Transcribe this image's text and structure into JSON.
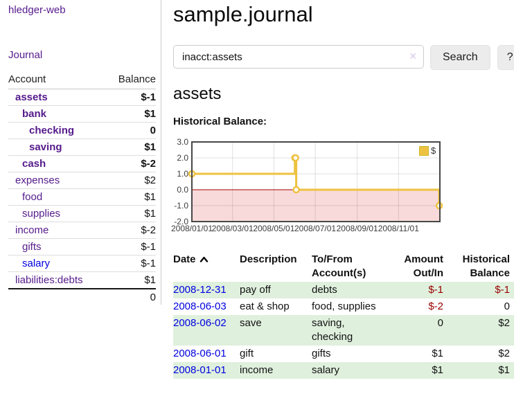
{
  "app": {
    "brand": "hledger-web",
    "journal_link": "Journal"
  },
  "sidebar": {
    "header": {
      "account": "Account",
      "balance": "Balance"
    },
    "accounts": [
      {
        "name": "assets",
        "depth": 1,
        "bold": true,
        "balance": "$-1",
        "balance_class": "neg",
        "link_class": ""
      },
      {
        "name": "bank",
        "depth": 2,
        "bold": true,
        "balance": "$1",
        "balance_class": "",
        "link_class": ""
      },
      {
        "name": "checking",
        "depth": 3,
        "bold": true,
        "balance": "0",
        "balance_class": "",
        "link_class": ""
      },
      {
        "name": "saving",
        "depth": 3,
        "bold": true,
        "balance": "$1",
        "balance_class": "",
        "link_class": ""
      },
      {
        "name": "cash",
        "depth": 2,
        "bold": true,
        "balance": "$-2",
        "balance_class": "neg",
        "link_class": ""
      },
      {
        "name": "expenses",
        "depth": 1,
        "bold": false,
        "balance": "$2",
        "balance_class": "",
        "link_class": ""
      },
      {
        "name": "food",
        "depth": 2,
        "bold": false,
        "balance": "$1",
        "balance_class": "",
        "link_class": ""
      },
      {
        "name": "supplies",
        "depth": 2,
        "bold": false,
        "balance": "$1",
        "balance_class": "",
        "link_class": ""
      },
      {
        "name": "income",
        "depth": 1,
        "bold": false,
        "balance": "$-2",
        "balance_class": "neg-muted",
        "link_class": ""
      },
      {
        "name": "gifts",
        "depth": 2,
        "bold": false,
        "balance": "$-1",
        "balance_class": "neg-muted",
        "link_class": ""
      },
      {
        "name": "salary",
        "depth": 2,
        "bold": false,
        "balance": "$-1",
        "balance_class": "neg-muted",
        "link_class": "blue"
      },
      {
        "name": "liabilities:debts",
        "depth": 1,
        "bold": false,
        "balance": "$1",
        "balance_class": "",
        "link_class": ""
      }
    ],
    "total": "0"
  },
  "main": {
    "title": "sample.journal",
    "search": {
      "value": "inacct:assets",
      "clear_icon": "✕",
      "search_button": "Search",
      "help_button": "?"
    },
    "account_heading": "assets",
    "chart_heading": "Historical Balance:"
  },
  "chart_data": {
    "type": "line",
    "step": true,
    "title": "Historical Balance",
    "legend_position": "top-right",
    "grid": true,
    "ylim": [
      -2,
      3
    ],
    "xlim_days": [
      0,
      366
    ],
    "yticks": [
      {
        "label": "3.0",
        "value": 3
      },
      {
        "label": "2.0",
        "value": 2
      },
      {
        "label": "1.0",
        "value": 1
      },
      {
        "label": "0.0",
        "value": 0
      },
      {
        "label": "-1.0",
        "value": -1
      },
      {
        "label": "-2.0",
        "value": -2
      }
    ],
    "xticks": [
      {
        "label": "2008/01/01",
        "day": 0
      },
      {
        "label": "2008/03/01",
        "day": 60
      },
      {
        "label": "2008/05/01",
        "day": 121
      },
      {
        "label": "2008/07/01",
        "day": 182
      },
      {
        "label": "2008/09/01",
        "day": 244
      },
      {
        "label": "2008/11/01",
        "day": 305
      }
    ],
    "series": [
      {
        "name": "$",
        "color": "#edc240",
        "points": [
          {
            "date": "2008-01-01",
            "day": 0,
            "value": 1
          },
          {
            "date": "2008-06-01",
            "day": 152,
            "value": 2
          },
          {
            "date": "2008-06-02",
            "day": 153,
            "value": 2
          },
          {
            "date": "2008-06-03",
            "day": 154,
            "value": 0
          },
          {
            "date": "2008-12-31",
            "day": 365,
            "value": -1
          }
        ]
      }
    ],
    "zero_line_color": "#a40000",
    "negative_region_color": "#f9dada",
    "grid_line_color": "rgba(0,0,0,0.12)",
    "border_color": "#474747"
  },
  "register": {
    "headers": {
      "date": "Date",
      "description": "Description",
      "account": "To/From Account(s)",
      "amount": "Amount Out/In",
      "balance": "Historical Balance"
    },
    "rows": [
      {
        "date": "2008-12-31",
        "description": "pay off",
        "accounts": "debts",
        "amount": "$-1",
        "amount_class": "neg",
        "balance": "$-1",
        "balance_class": "neg"
      },
      {
        "date": "2008-06-03",
        "description": "eat & shop",
        "accounts": "food, supplies",
        "amount": "$-2",
        "amount_class": "neg",
        "balance": "0",
        "balance_class": ""
      },
      {
        "date": "2008-06-02",
        "description": "save",
        "accounts": "saving, checking",
        "amount": "0",
        "amount_class": "",
        "balance": "$2",
        "balance_class": ""
      },
      {
        "date": "2008-06-01",
        "description": "gift",
        "accounts": "gifts",
        "amount": "$1",
        "amount_class": "",
        "balance": "$2",
        "balance_class": ""
      },
      {
        "date": "2008-01-01",
        "description": "income",
        "accounts": "salary",
        "amount": "$1",
        "amount_class": "",
        "balance": "$1",
        "balance_class": ""
      }
    ]
  }
}
